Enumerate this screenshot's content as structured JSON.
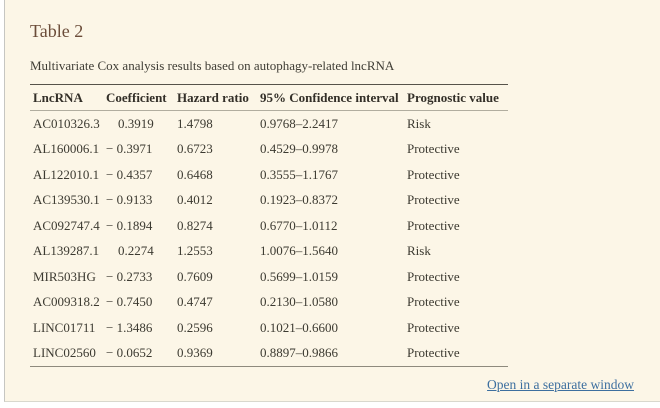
{
  "panel": {
    "title": "Table 2",
    "caption": "Multivariate Cox analysis results based on autophagy-related lncRNA"
  },
  "table": {
    "columns": [
      "LncRNA",
      "Coefficient",
      "Hazard ratio",
      "95% Confidence interval",
      "Prognostic value"
    ],
    "rows": [
      [
        "AC010326.3",
        "0.3919",
        "1.4798",
        "0.9768–2.2417",
        "Risk"
      ],
      [
        "AL160006.1",
        "− 0.3971",
        "0.6723",
        "0.4529–0.9978",
        "Protective"
      ],
      [
        "AL122010.1",
        "− 0.4357",
        "0.6468",
        "0.3555–1.1767",
        "Protective"
      ],
      [
        "AC139530.1",
        "− 0.9133",
        "0.4012",
        "0.1923–0.8372",
        "Protective"
      ],
      [
        "AC092747.4",
        "− 0.1894",
        "0.8274",
        "0.6770–1.0112",
        "Protective"
      ],
      [
        "AL139287.1",
        "0.2274",
        "1.2553",
        "1.0076–1.5640",
        "Risk"
      ],
      [
        "MIR503HG",
        "− 0.2733",
        "0.7609",
        "0.5699–1.0159",
        "Protective"
      ],
      [
        "AC009318.2",
        "− 0.7450",
        "0.4747",
        "0.2130–1.0580",
        "Protective"
      ],
      [
        "LINC01711",
        "− 1.3486",
        "0.2596",
        "0.1021–0.6600",
        "Protective"
      ],
      [
        "LINC02560",
        "− 0.0652",
        "0.9369",
        "0.8897–0.9866",
        "Protective"
      ]
    ]
  },
  "footer": {
    "open_link": "Open in a separate window"
  },
  "colors": {
    "panel_background": "#fcf6e7",
    "title_text": "#6b4c39",
    "body_text": "#3c3a31",
    "link": "#3d6f9f",
    "rule_top": "#56534a",
    "rule_bottom": "#8e8a7d"
  }
}
